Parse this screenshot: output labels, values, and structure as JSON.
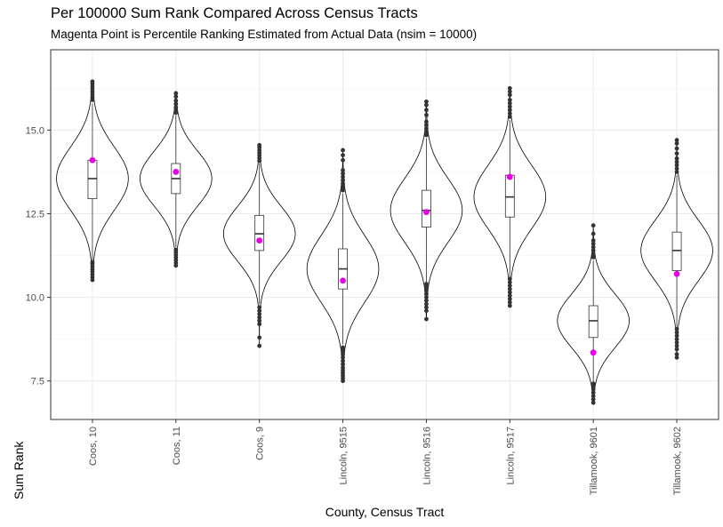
{
  "chart_data": {
    "type": "violin",
    "title": "Per 100000 Sum Rank Compared Across Census Tracts",
    "subtitle": "Magenta Point is Percentile Ranking Estimated from Actual Data (nsim = 10000)",
    "xlabel": "County, Census Tract",
    "ylabel": "Sum Rank",
    "ylim": [
      6.35,
      17.4
    ],
    "yticks": [
      7.5,
      10.0,
      12.5,
      15.0
    ],
    "ytick_labels": [
      "7.5",
      "10.0",
      "12.5",
      "15.0"
    ],
    "grid": true,
    "colors": {
      "observed": "#e600e6",
      "outline": "#000000",
      "outlier": "#333333",
      "grid": "#ebebeb",
      "border": "#333333"
    },
    "categories": [
      "Coos, 10",
      "Coos, 11",
      "Coos, 9",
      "Lincoln, 9515",
      "Lincoln, 9516",
      "Lincoln, 9517",
      "Tillamook, 9601",
      "Tillamook, 9602"
    ],
    "groups": [
      {
        "category": "Coos, 10",
        "min": 10.5,
        "max": 16.45,
        "center": 13.55,
        "spread": 0.95,
        "box": {
          "q1": 12.95,
          "median": 13.55,
          "q3": 14.1,
          "whisker_low": 11.1,
          "whisker_high": 15.8
        },
        "outliers_low": [
          10.52,
          10.6,
          10.68,
          10.76,
          10.84,
          10.92,
          11.0,
          11.05
        ],
        "outliers_high": [
          15.9,
          15.98,
          16.06,
          16.14,
          16.22,
          16.3,
          16.38,
          16.45
        ],
        "observed": 14.1
      },
      {
        "category": "Coos, 11",
        "min": 10.95,
        "max": 16.1,
        "center": 13.55,
        "spread": 0.82,
        "box": {
          "q1": 13.1,
          "median": 13.55,
          "q3": 14.0,
          "whisker_low": 11.5,
          "whisker_high": 15.45
        },
        "outliers_low": [
          10.95,
          11.03,
          11.11,
          11.19,
          11.27,
          11.35,
          11.42
        ],
        "outliers_high": [
          15.52,
          15.6,
          15.68,
          15.78,
          15.88,
          16.0,
          16.1
        ],
        "observed": 13.75
      },
      {
        "category": "Coos, 9",
        "min": 8.55,
        "max": 14.55,
        "center": 11.9,
        "spread": 0.82,
        "box": {
          "q1": 11.4,
          "median": 11.9,
          "q3": 12.45,
          "whisker_low": 9.8,
          "whisker_high": 14.0
        },
        "outliers_low": [
          8.55,
          8.8,
          9.2,
          9.3,
          9.4,
          9.5,
          9.6,
          9.7
        ],
        "outliers_high": [
          14.08,
          14.16,
          14.24,
          14.32,
          14.4,
          14.48,
          14.55
        ],
        "observed": 11.7
      },
      {
        "category": "Lincoln, 9515",
        "min": 7.5,
        "max": 14.4,
        "center": 10.85,
        "spread": 1.0,
        "box": {
          "q1": 10.25,
          "median": 10.85,
          "q3": 11.45,
          "whisker_low": 8.6,
          "whisker_high": 13.1
        },
        "outliers_low": [
          7.5,
          7.58,
          7.66,
          7.74,
          7.82,
          7.9,
          8.0,
          8.1,
          8.2,
          8.3,
          8.4,
          8.5
        ],
        "outliers_high": [
          13.2,
          13.3,
          13.4,
          13.5,
          13.6,
          13.7,
          13.8,
          14.1,
          14.25,
          14.4
        ],
        "observed": 10.5
      },
      {
        "category": "Lincoln, 9516",
        "min": 9.35,
        "max": 15.85,
        "center": 12.6,
        "spread": 0.95,
        "box": {
          "q1": 12.1,
          "median": 12.6,
          "q3": 13.2,
          "whisker_low": 10.45,
          "whisker_high": 14.75
        },
        "outliers_low": [
          9.35,
          9.6,
          9.7,
          9.8,
          9.9,
          10.0,
          10.1,
          10.2,
          10.3,
          10.4
        ],
        "outliers_high": [
          14.85,
          14.95,
          15.05,
          15.15,
          15.25,
          15.45,
          15.6,
          15.75,
          15.85
        ],
        "observed": 12.55
      },
      {
        "category": "Lincoln, 9517",
        "min": 9.75,
        "max": 16.25,
        "center": 13.0,
        "spread": 0.95,
        "box": {
          "q1": 12.4,
          "median": 13.0,
          "q3": 13.65,
          "whisker_low": 10.6,
          "whisker_high": 15.3
        },
        "outliers_low": [
          9.75,
          9.85,
          9.95,
          10.05,
          10.15,
          10.25,
          10.35,
          10.45,
          10.55
        ],
        "outliers_high": [
          15.4,
          15.5,
          15.6,
          15.7,
          15.8,
          15.9,
          16.05,
          16.15,
          16.25
        ],
        "observed": 13.6
      },
      {
        "category": "Tillamook, 9601",
        "min": 6.85,
        "max": 12.15,
        "center": 9.3,
        "spread": 0.8,
        "box": {
          "q1": 8.8,
          "median": 9.3,
          "q3": 9.75,
          "whisker_low": 7.45,
          "whisker_high": 11.1
        },
        "outliers_low": [
          6.85,
          6.95,
          7.05,
          7.15,
          7.25,
          7.35,
          7.42
        ],
        "outliers_high": [
          11.2,
          11.3,
          11.4,
          11.5,
          11.6,
          11.7,
          11.9,
          12.15
        ],
        "observed": 8.35
      },
      {
        "category": "Tillamook, 9602",
        "min": 8.2,
        "max": 14.7,
        "center": 11.4,
        "spread": 0.9,
        "box": {
          "q1": 10.8,
          "median": 11.4,
          "q3": 11.95,
          "whisker_low": 9.1,
          "whisker_high": 13.65
        },
        "outliers_low": [
          8.2,
          8.3,
          8.45,
          8.55,
          8.65,
          8.75,
          8.85,
          8.95,
          9.05
        ],
        "outliers_high": [
          13.75,
          13.85,
          13.95,
          14.05,
          14.15,
          14.3,
          14.45,
          14.6,
          14.7
        ],
        "observed": 10.7
      }
    ]
  }
}
